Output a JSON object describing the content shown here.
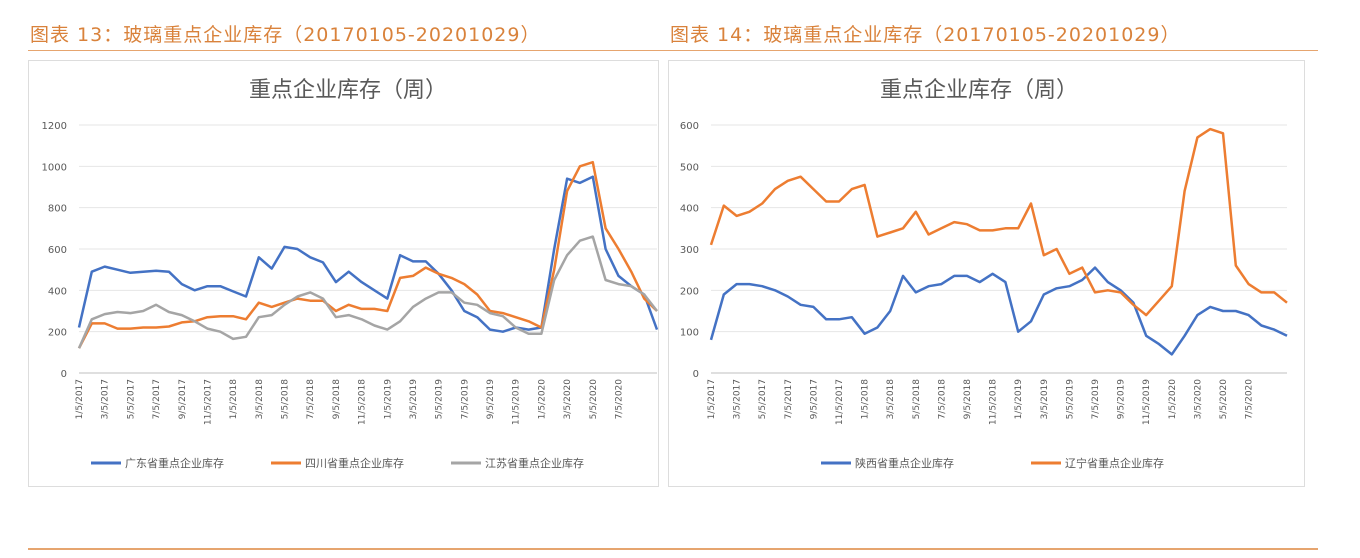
{
  "figures": [
    {
      "caption": "图表 13：玻璃重点企业库存（20170105-20201029）"
    },
    {
      "caption": "图表 14：玻璃重点企业库存（20170105-20201029）"
    }
  ],
  "chart_data": [
    {
      "type": "line",
      "title": "重点企业库存（周）",
      "ylim": [
        0,
        1200
      ],
      "yticks": [
        "0",
        "200",
        "400",
        "600",
        "800",
        "1000",
        "1200"
      ],
      "grid": true,
      "legend": "bottom",
      "x": [
        "2017-01",
        "2017-02",
        "2017-03",
        "2017-04",
        "2017-05",
        "2017-06",
        "2017-07",
        "2017-08",
        "2017-09",
        "2017-10",
        "2017-11",
        "2017-12",
        "2018-01",
        "2018-02",
        "2018-03",
        "2018-04",
        "2018-05",
        "2018-06",
        "2018-07",
        "2018-08",
        "2018-09",
        "2018-10",
        "2018-11",
        "2018-12",
        "2019-01",
        "2019-02",
        "2019-03",
        "2019-04",
        "2019-05",
        "2019-06",
        "2019-07",
        "2019-08",
        "2019-09",
        "2019-10",
        "2019-11",
        "2019-12",
        "2020-01",
        "2020-02",
        "2020-03",
        "2020-04",
        "2020-05",
        "2020-06",
        "2020-07",
        "2020-08",
        "2020-09",
        "2020-10"
      ],
      "xticks": [
        "1/5/2017",
        "3/5/2017",
        "5/5/2017",
        "7/5/2017",
        "9/5/2017",
        "11/5/2017",
        "1/5/2018",
        "3/5/2018",
        "5/5/2018",
        "7/5/2018",
        "9/5/2018",
        "11/5/2018",
        "1/5/2019",
        "3/5/2019",
        "5/5/2019",
        "7/5/2019",
        "9/5/2019",
        "11/5/2019",
        "1/5/2020",
        "3/5/2020",
        "5/5/2020",
        "7/5/2020"
      ],
      "series": [
        {
          "name": "广东省重点企业库存",
          "color": "#4472c4",
          "values": [
            220,
            490,
            515,
            500,
            485,
            490,
            495,
            490,
            430,
            400,
            420,
            420,
            395,
            370,
            560,
            505,
            610,
            600,
            560,
            535,
            440,
            490,
            440,
            400,
            360,
            570,
            540,
            540,
            480,
            400,
            300,
            270,
            210,
            200,
            220,
            210,
            220,
            600,
            940,
            920,
            950,
            600,
            470,
            420,
            380,
            210
          ]
        },
        {
          "name": "四川省重点企业库存",
          "color": "#ed7d31",
          "values": [
            120,
            240,
            240,
            215,
            215,
            220,
            220,
            225,
            245,
            250,
            270,
            275,
            275,
            260,
            340,
            320,
            340,
            360,
            350,
            350,
            300,
            330,
            310,
            310,
            300,
            460,
            470,
            510,
            480,
            460,
            430,
            380,
            300,
            290,
            270,
            250,
            220,
            500,
            880,
            1000,
            1020,
            700,
            600,
            490,
            360,
            300
          ]
        },
        {
          "name": "江苏省重点企业库存",
          "color": "#a5a5a5",
          "values": [
            120,
            260,
            285,
            295,
            290,
            300,
            330,
            295,
            280,
            250,
            215,
            200,
            165,
            175,
            270,
            280,
            330,
            370,
            390,
            360,
            270,
            280,
            260,
            230,
            210,
            250,
            320,
            360,
            390,
            390,
            340,
            330,
            290,
            275,
            220,
            190,
            190,
            450,
            570,
            640,
            660,
            450,
            430,
            420,
            380,
            300
          ]
        }
      ]
    },
    {
      "type": "line",
      "title": "重点企业库存（周）",
      "ylim": [
        0,
        600
      ],
      "yticks": [
        "0",
        "100",
        "200",
        "300",
        "400",
        "500",
        "600"
      ],
      "grid": true,
      "legend": "bottom",
      "x": [
        "2017-01",
        "2017-02",
        "2017-03",
        "2017-04",
        "2017-05",
        "2017-06",
        "2017-07",
        "2017-08",
        "2017-09",
        "2017-10",
        "2017-11",
        "2017-12",
        "2018-01",
        "2018-02",
        "2018-03",
        "2018-04",
        "2018-05",
        "2018-06",
        "2018-07",
        "2018-08",
        "2018-09",
        "2018-10",
        "2018-11",
        "2018-12",
        "2019-01",
        "2019-02",
        "2019-03",
        "2019-04",
        "2019-05",
        "2019-06",
        "2019-07",
        "2019-08",
        "2019-09",
        "2019-10",
        "2019-11",
        "2019-12",
        "2020-01",
        "2020-02",
        "2020-03",
        "2020-04",
        "2020-05",
        "2020-06",
        "2020-07",
        "2020-08",
        "2020-09",
        "2020-10"
      ],
      "xticks": [
        "1/5/2017",
        "3/5/2017",
        "5/5/2017",
        "7/5/2017",
        "9/5/2017",
        "11/5/2017",
        "1/5/2018",
        "3/5/2018",
        "5/5/2018",
        "7/5/2018",
        "9/5/2018",
        "11/5/2018",
        "1/5/2019",
        "3/5/2019",
        "5/5/2019",
        "7/5/2019",
        "9/5/2019",
        "11/5/2019",
        "1/5/2020",
        "3/5/2020",
        "5/5/2020",
        "7/5/2020"
      ],
      "series": [
        {
          "name": "陕西省重点企业库存",
          "color": "#4472c4",
          "values": [
            80,
            190,
            215,
            215,
            210,
            200,
            185,
            165,
            160,
            130,
            130,
            135,
            95,
            110,
            150,
            235,
            195,
            210,
            215,
            235,
            235,
            220,
            240,
            220,
            100,
            125,
            190,
            205,
            210,
            225,
            255,
            220,
            200,
            170,
            90,
            70,
            45,
            90,
            140,
            160,
            150,
            150,
            140,
            115,
            105,
            90
          ]
        },
        {
          "name": "辽宁省重点企业库存",
          "color": "#ed7d31",
          "values": [
            310,
            405,
            380,
            390,
            410,
            445,
            465,
            475,
            445,
            415,
            415,
            445,
            455,
            330,
            340,
            350,
            390,
            335,
            350,
            365,
            360,
            345,
            345,
            350,
            350,
            410,
            285,
            300,
            240,
            255,
            195,
            200,
            195,
            165,
            140,
            175,
            210,
            440,
            570,
            590,
            580,
            260,
            215,
            195,
            195,
            170
          ]
        }
      ]
    }
  ]
}
